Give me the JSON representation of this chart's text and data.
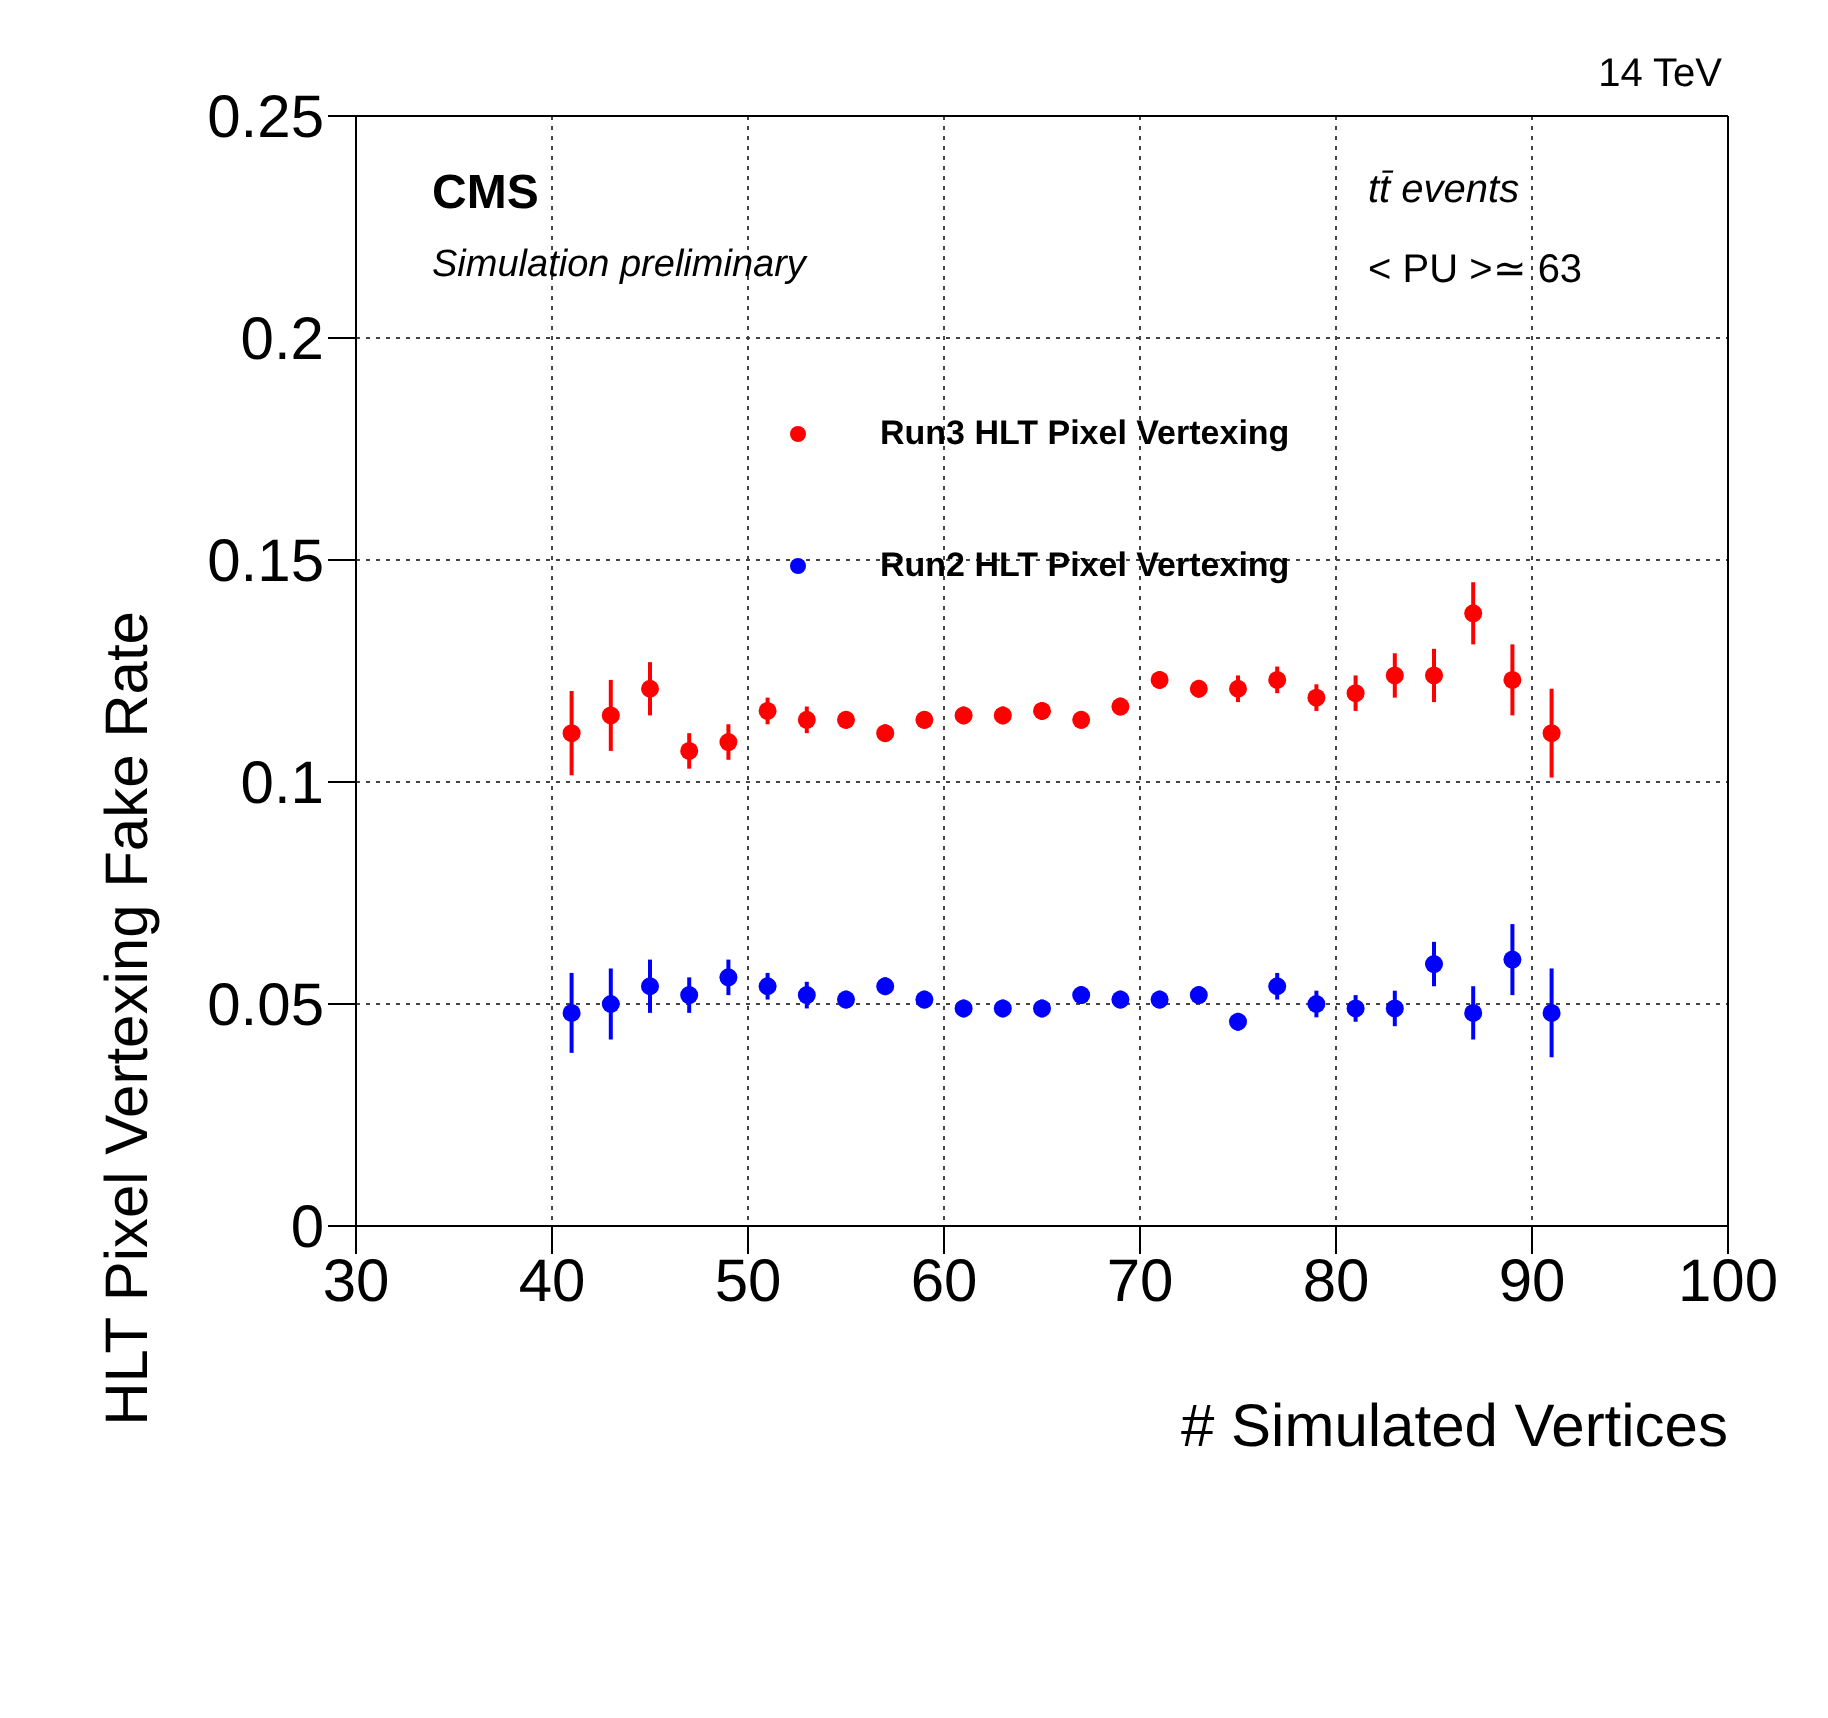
{
  "chart_data": {
    "type": "scatter",
    "xlabel": "# Simulated Vertices",
    "ylabel": "HLT Pixel Vertexing Fake Rate",
    "annotations": [
      "14 TeV",
      "CMS",
      "Simulation preliminary",
      "tt̄  events",
      "< PU >≃ 63"
    ],
    "x": [
      41,
      43,
      45,
      47,
      49,
      51,
      53,
      55,
      57,
      59,
      61,
      63,
      65,
      67,
      69,
      71,
      73,
      75,
      77,
      79,
      81,
      83,
      85,
      87,
      89,
      91
    ],
    "series": [
      {
        "name": "Run3 HLT Pixel Vertexing",
        "color": "#ff0000",
        "values": [
          0.111,
          0.115,
          0.121,
          0.107,
          0.109,
          0.116,
          0.114,
          0.114,
          0.111,
          0.114,
          0.115,
          0.115,
          0.116,
          0.114,
          0.117,
          0.123,
          0.121,
          0.121,
          0.123,
          0.119,
          0.12,
          0.124,
          0.124,
          0.138,
          0.123,
          0.111
        ],
        "errors": [
          0.0095,
          0.008,
          0.006,
          0.004,
          0.004,
          0.003,
          0.003,
          0.002,
          0.002,
          0.002,
          0.002,
          0.002,
          0.002,
          0.002,
          0.002,
          0.002,
          0.002,
          0.003,
          0.003,
          0.003,
          0.004,
          0.005,
          0.006,
          0.007,
          0.008,
          0.01
        ]
      },
      {
        "name": "Run2 HLT Pixel Vertexing",
        "color": "#0000ff",
        "values": [
          0.048,
          0.05,
          0.054,
          0.052,
          0.056,
          0.054,
          0.052,
          0.051,
          0.054,
          0.051,
          0.049,
          0.049,
          0.049,
          0.052,
          0.051,
          0.051,
          0.052,
          0.046,
          0.054,
          0.05,
          0.049,
          0.049,
          0.059,
          0.048,
          0.06,
          0.048
        ],
        "errors": [
          0.009,
          0.008,
          0.006,
          0.004,
          0.004,
          0.003,
          0.003,
          0.002,
          0.002,
          0.002,
          0.002,
          0.002,
          0.002,
          0.002,
          0.002,
          0.002,
          0.002,
          0.002,
          0.003,
          0.003,
          0.003,
          0.004,
          0.005,
          0.006,
          0.008,
          0.01
        ]
      }
    ],
    "xlim": [
      30,
      100
    ],
    "xticks": [
      30,
      40,
      50,
      60,
      70,
      80,
      90,
      100
    ],
    "ylim": [
      0,
      0.25
    ],
    "yticks": [
      0,
      0.05,
      0.1,
      0.15,
      0.2,
      0.25
    ],
    "grid": true,
    "legend": "top",
    "marker": "circle"
  }
}
